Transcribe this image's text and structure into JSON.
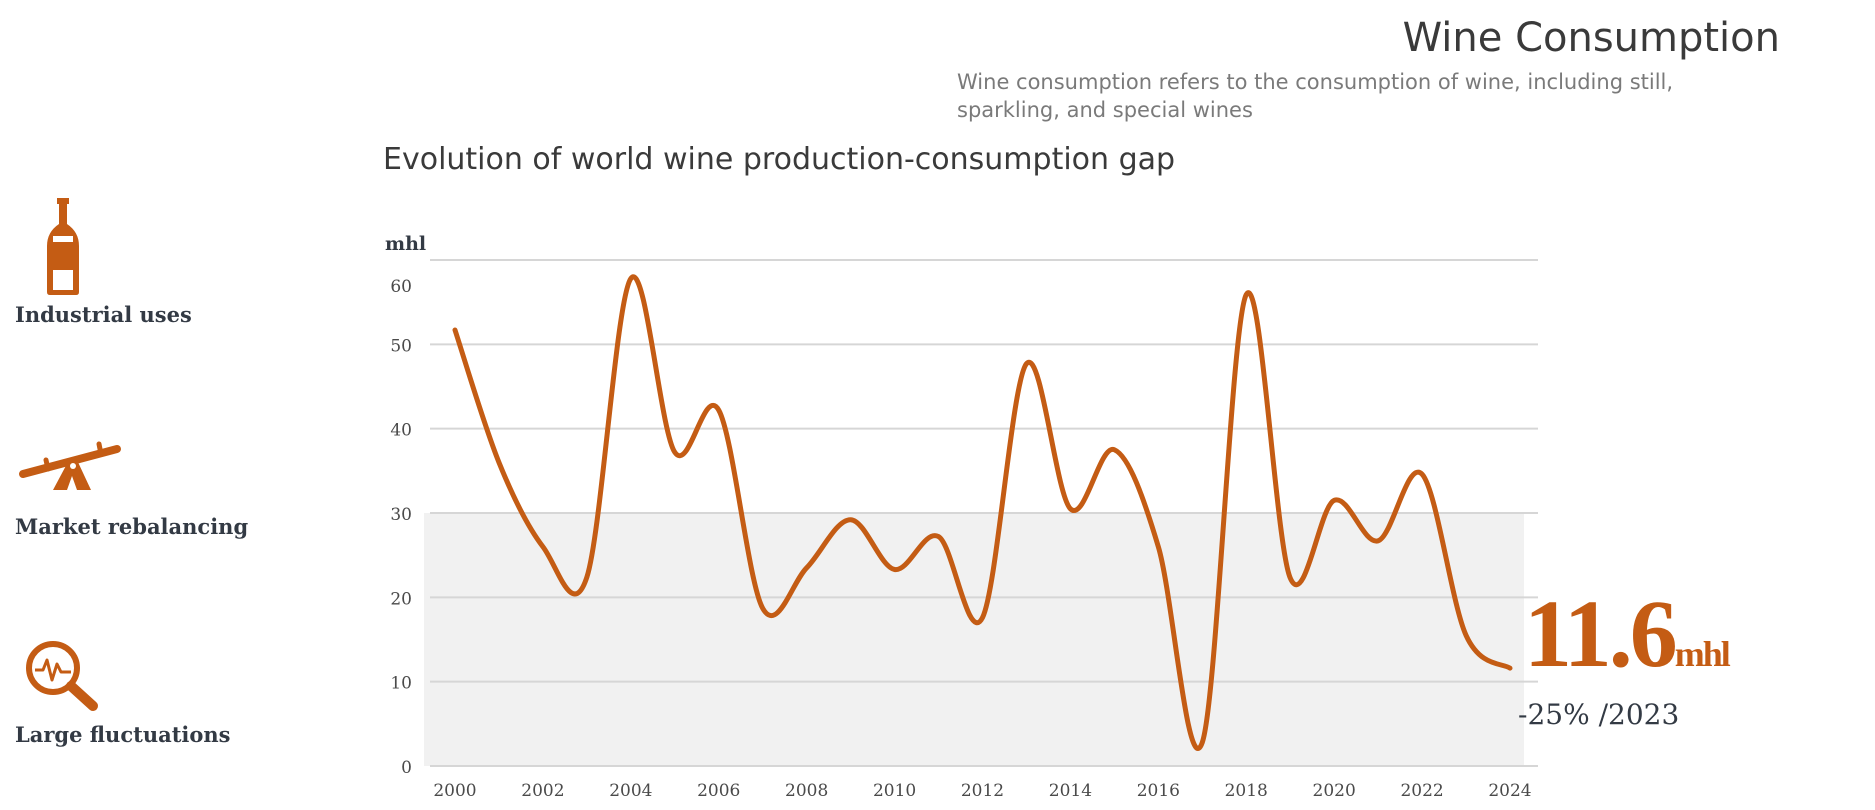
{
  "header": {
    "title": "Wine Consumption",
    "subtitle": "Wine consumption refers to the consumption of wine, including still, sparkling, and special wines"
  },
  "sidebar": {
    "items": [
      {
        "label": "Industrial uses",
        "icon": "wine-bottle-icon"
      },
      {
        "label": "Market rebalancing",
        "icon": "seesaw-icon"
      },
      {
        "label": "Large fluctuations",
        "icon": "magnifier-pulse-icon"
      }
    ]
  },
  "highlight": {
    "value": "11.6",
    "unit": "mhl",
    "change": "-25% /2023"
  },
  "colors": {
    "accent": "#c45c14",
    "text": "#333a44",
    "grid": "#d6d6d6",
    "band": "#f1f1f1"
  },
  "chart_data": {
    "type": "line",
    "title": "Evolution of world wine production-consumption gap",
    "ylabel": "mhl",
    "xlabel": "",
    "ylim": [
      0,
      60
    ],
    "yticks": [
      0,
      10,
      20,
      30,
      40,
      50,
      60
    ],
    "xticks": [
      2000,
      2002,
      2004,
      2006,
      2008,
      2010,
      2012,
      2014,
      2016,
      2018,
      2020,
      2022,
      2024
    ],
    "xlim": [
      2000,
      2024
    ],
    "grid": true,
    "shaded_band": [
      0,
      30
    ],
    "series": [
      {
        "name": "Production-consumption gap",
        "x": [
          2000,
          2001,
          2002,
          2003,
          2004,
          2005,
          2006,
          2007,
          2008,
          2009,
          2010,
          2011,
          2012,
          2013,
          2014,
          2015,
          2016,
          2017,
          2018,
          2019,
          2020,
          2021,
          2022,
          2023,
          2024
        ],
        "values": [
          51.7,
          36.0,
          26.0,
          22.4,
          57.8,
          37.2,
          42.2,
          18.7,
          23.5,
          29.2,
          23.3,
          27.2,
          17.6,
          47.7,
          30.5,
          37.5,
          26.0,
          2.8,
          55.9,
          22.3,
          31.5,
          26.7,
          34.6,
          15.5,
          11.6
        ]
      }
    ]
  }
}
